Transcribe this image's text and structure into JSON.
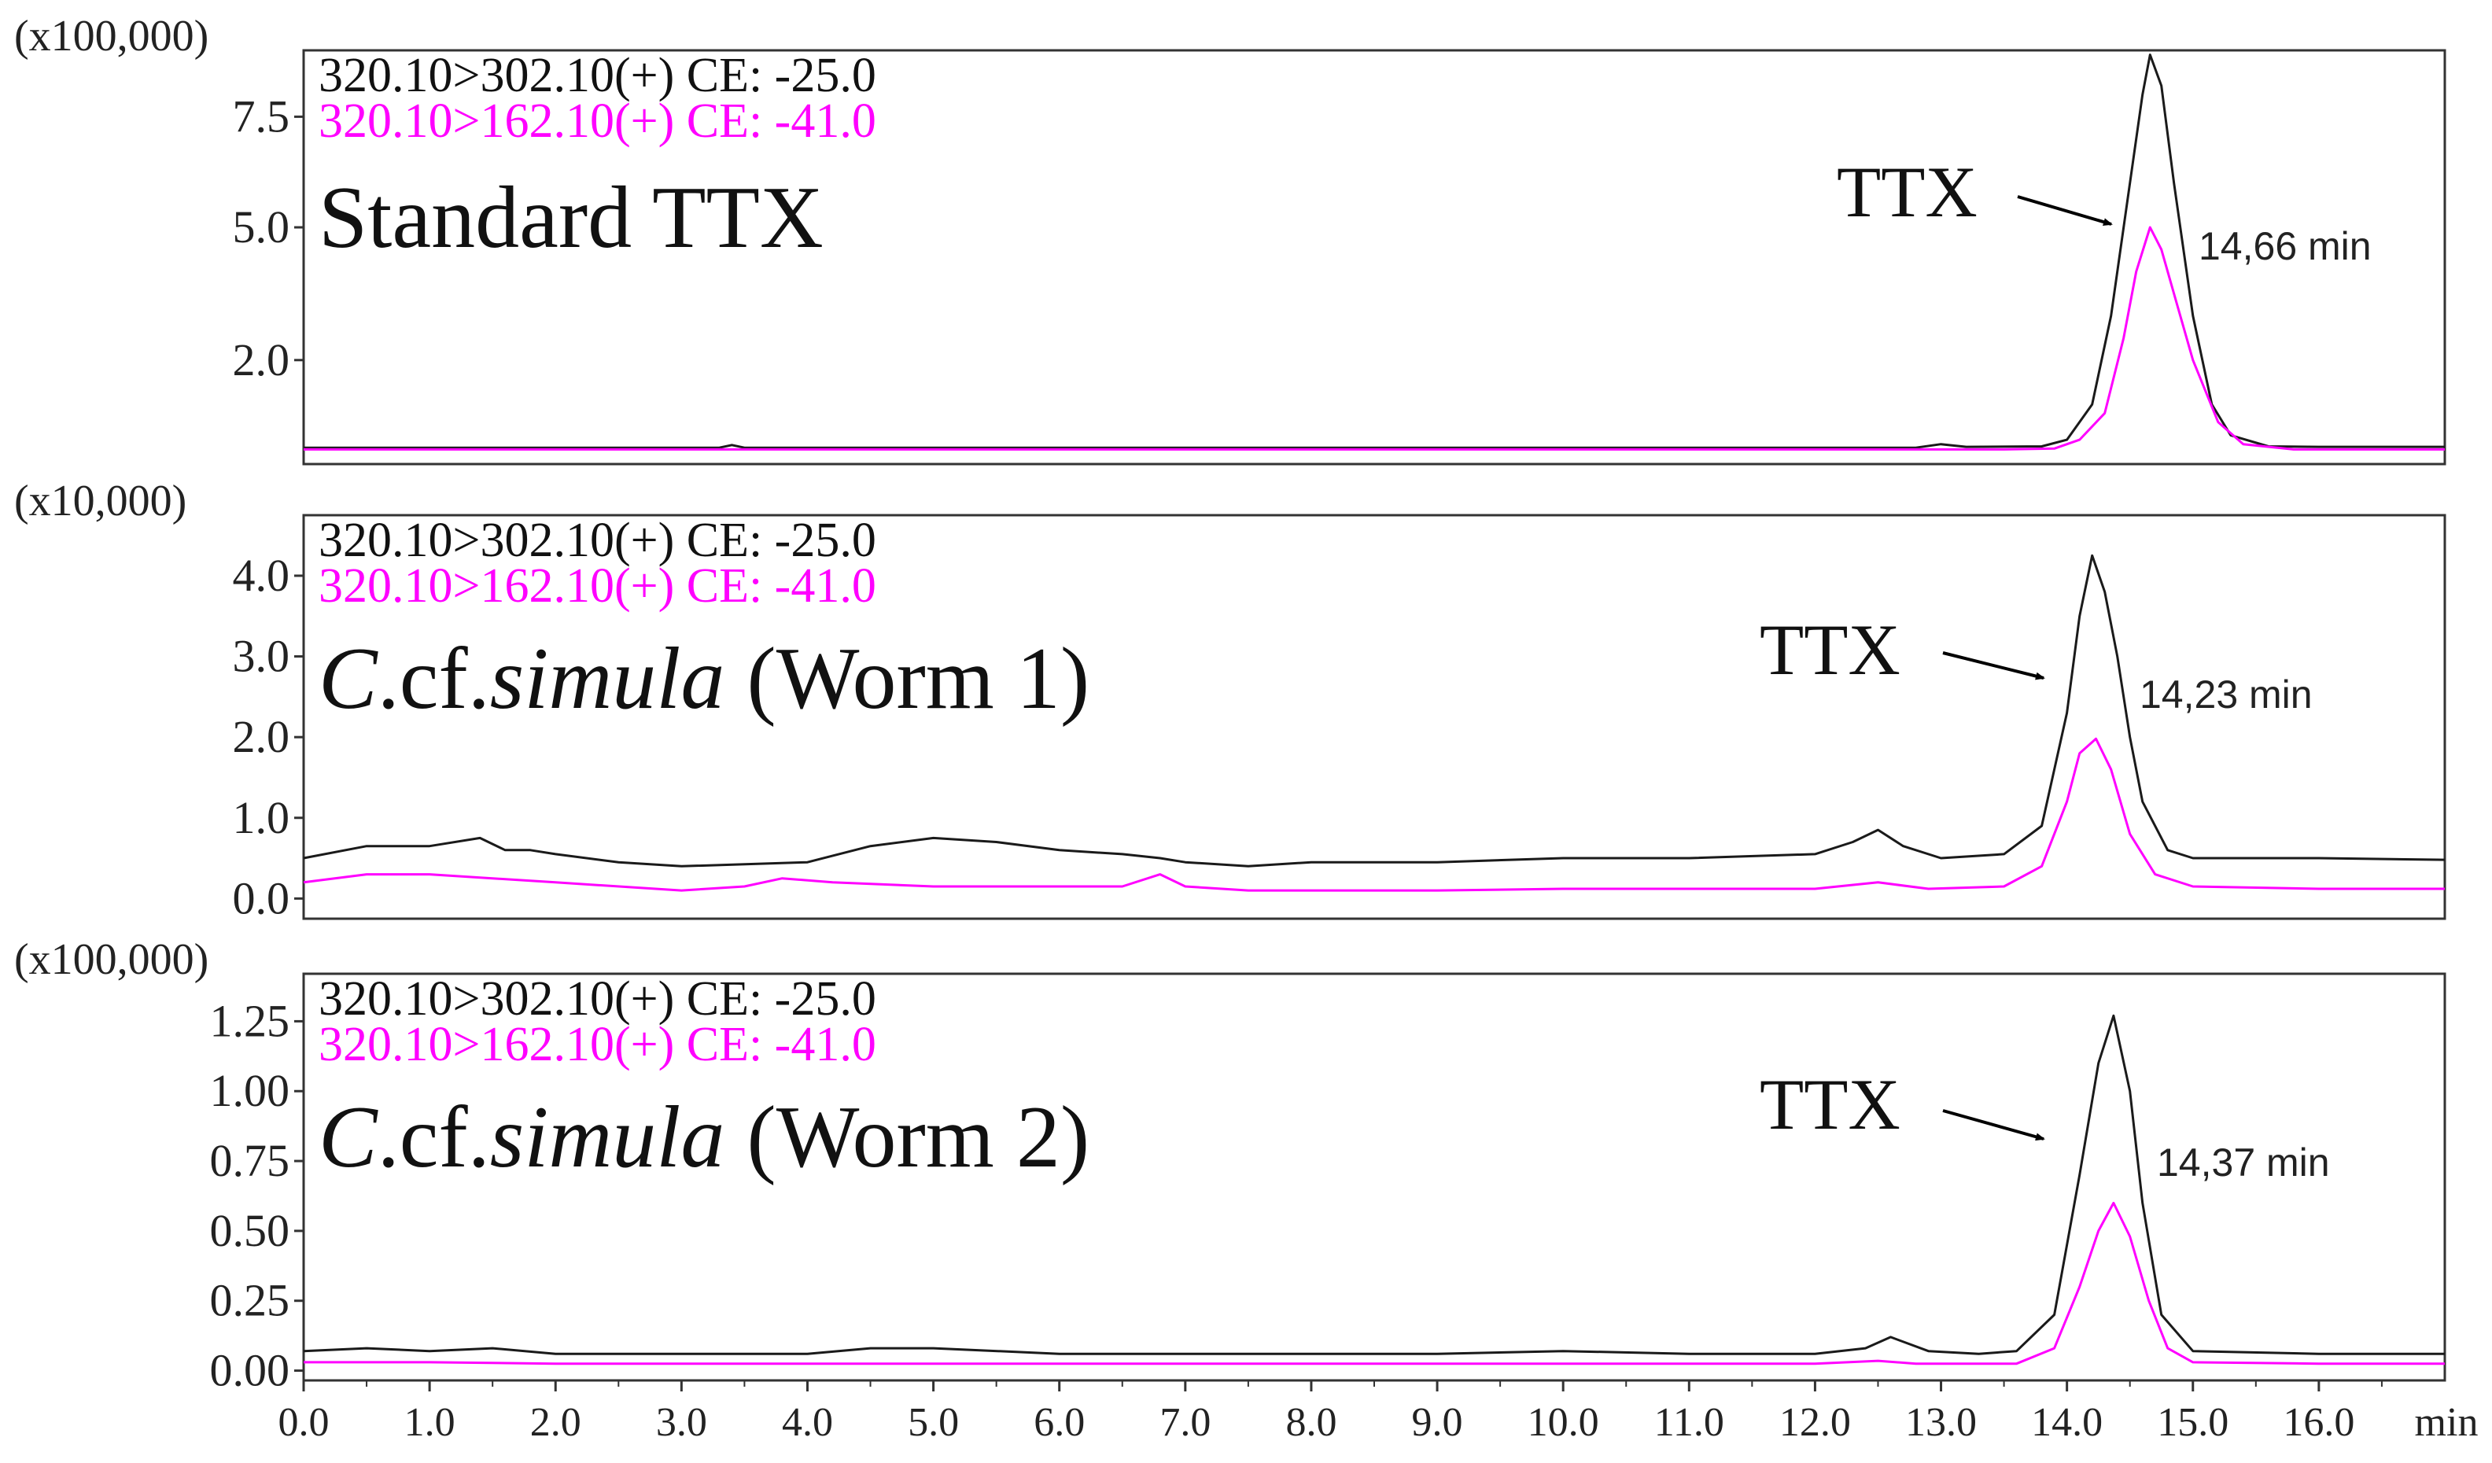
{
  "chart_data": [
    {
      "type": "line",
      "scale_label": "(x100,000)",
      "legend": [
        "320.10>302.10(+) CE: -25.0",
        "320.10>162.10(+) CE: -41.0"
      ],
      "sample_label": "Standard TTX",
      "peak_label": "TTX",
      "retention_label": "14,66 min",
      "y_ticks": [
        "2.0",
        "5.0",
        "7.5"
      ],
      "y_tick_values": [
        2.0,
        5.0,
        7.5
      ],
      "ylim": [
        -0.35,
        9.0
      ],
      "xlim": [
        0.0,
        17.0
      ],
      "series": [
        {
          "color": "#1a1a1a",
          "x": [
            0.0,
            2.0,
            3.3,
            3.4,
            3.5,
            5.0,
            8.0,
            10.0,
            12.8,
            13.0,
            13.2,
            13.8,
            14.0,
            14.2,
            14.35,
            14.5,
            14.6,
            14.66,
            14.75,
            14.85,
            15.0,
            15.15,
            15.3,
            15.6,
            16.0,
            17.0
          ],
          "y": [
            0.02,
            0.02,
            0.02,
            0.08,
            0.02,
            0.02,
            0.02,
            0.02,
            0.02,
            0.1,
            0.04,
            0.05,
            0.2,
            1.0,
            3.0,
            6.0,
            8.0,
            8.9,
            8.2,
            6.0,
            3.0,
            1.0,
            0.3,
            0.05,
            0.04,
            0.04
          ]
        },
        {
          "color": "#ff00ff",
          "x": [
            0.0,
            3.0,
            5.0,
            10.0,
            13.5,
            13.9,
            14.1,
            14.3,
            14.45,
            14.55,
            14.66,
            14.75,
            14.85,
            15.0,
            15.2,
            15.4,
            15.8,
            17.0
          ],
          "y": [
            -0.02,
            -0.02,
            -0.02,
            -0.02,
            -0.02,
            0.0,
            0.2,
            0.8,
            2.5,
            4.0,
            5.0,
            4.5,
            3.5,
            2.0,
            0.6,
            0.1,
            -0.02,
            -0.02
          ]
        }
      ]
    },
    {
      "type": "line",
      "scale_label": "(x10,000)",
      "legend": [
        "320.10>302.10(+) CE: -25.0",
        "320.10>162.10(+) CE: -41.0"
      ],
      "sample_label_italic": "C",
      "sample_label_mid": ".cf.",
      "sample_label_italic2": "simula",
      "sample_label_rest": " (Worm 1)",
      "peak_label": "TTX",
      "retention_label": "14,23 min",
      "y_ticks": [
        "0.0",
        "1.0",
        "2.0",
        "3.0",
        "4.0"
      ],
      "y_tick_values": [
        0.0,
        1.0,
        2.0,
        3.0,
        4.0
      ],
      "ylim": [
        -0.25,
        4.75
      ],
      "xlim": [
        0.0,
        17.0
      ],
      "series": [
        {
          "color": "#1a1a1a",
          "x": [
            0.0,
            0.5,
            1.0,
            1.4,
            1.6,
            1.8,
            2.0,
            2.5,
            3.0,
            4.0,
            4.5,
            5.0,
            5.5,
            6.0,
            6.5,
            6.8,
            7.0,
            7.5,
            8.0,
            9.0,
            10.0,
            11.0,
            12.0,
            12.3,
            12.5,
            12.7,
            13.0,
            13.5,
            13.8,
            14.0,
            14.1,
            14.2,
            14.3,
            14.4,
            14.5,
            14.6,
            14.8,
            15.0,
            16.0,
            17.0
          ],
          "y": [
            0.5,
            0.65,
            0.65,
            0.75,
            0.6,
            0.6,
            0.55,
            0.45,
            0.4,
            0.45,
            0.65,
            0.75,
            0.7,
            0.6,
            0.55,
            0.5,
            0.45,
            0.4,
            0.45,
            0.45,
            0.5,
            0.5,
            0.55,
            0.7,
            0.85,
            0.65,
            0.5,
            0.55,
            0.9,
            2.3,
            3.5,
            4.25,
            3.8,
            3.0,
            2.0,
            1.2,
            0.6,
            0.5,
            0.5,
            0.48
          ]
        },
        {
          "color": "#ff00ff",
          "x": [
            0.0,
            0.5,
            1.0,
            2.0,
            3.0,
            3.5,
            3.8,
            4.2,
            5.0,
            6.0,
            6.5,
            6.8,
            7.0,
            7.5,
            8.0,
            9.0,
            10.0,
            11.0,
            12.0,
            12.5,
            12.9,
            13.5,
            13.8,
            14.0,
            14.1,
            14.23,
            14.35,
            14.5,
            14.7,
            15.0,
            16.0,
            17.0
          ],
          "y": [
            0.2,
            0.3,
            0.3,
            0.2,
            0.1,
            0.15,
            0.25,
            0.2,
            0.15,
            0.15,
            0.15,
            0.3,
            0.15,
            0.1,
            0.1,
            0.1,
            0.12,
            0.12,
            0.12,
            0.2,
            0.12,
            0.15,
            0.4,
            1.2,
            1.8,
            1.98,
            1.6,
            0.8,
            0.3,
            0.15,
            0.12,
            0.12
          ]
        }
      ]
    },
    {
      "type": "line",
      "scale_label": "(x100,000)",
      "legend": [
        "320.10>302.10(+) CE: -25.0",
        "320.10>162.10(+) CE: -41.0"
      ],
      "sample_label_italic": "C",
      "sample_label_mid": ".cf.",
      "sample_label_italic2": "simula",
      "sample_label_rest": " (Worm 2)",
      "peak_label": "TTX",
      "retention_label": "14,37 min",
      "y_ticks": [
        "0.00",
        "0.25",
        "0.50",
        "0.75",
        "1.00",
        "1.25"
      ],
      "y_tick_values": [
        0.0,
        0.25,
        0.5,
        0.75,
        1.0,
        1.25
      ],
      "ylim": [
        -0.035,
        1.42
      ],
      "xlim": [
        0.0,
        17.0
      ],
      "series": [
        {
          "color": "#1a1a1a",
          "x": [
            0.0,
            0.5,
            1.0,
            1.5,
            2.0,
            3.0,
            4.0,
            4.5,
            5.0,
            6.0,
            7.0,
            9.0,
            10.0,
            11.0,
            12.0,
            12.4,
            12.6,
            12.9,
            13.3,
            13.6,
            13.9,
            14.1,
            14.25,
            14.37,
            14.5,
            14.6,
            14.75,
            15.0,
            16.0,
            17.0
          ],
          "y": [
            0.07,
            0.08,
            0.07,
            0.08,
            0.06,
            0.06,
            0.06,
            0.08,
            0.08,
            0.06,
            0.06,
            0.06,
            0.07,
            0.06,
            0.06,
            0.08,
            0.12,
            0.07,
            0.06,
            0.07,
            0.2,
            0.7,
            1.1,
            1.27,
            1.0,
            0.6,
            0.2,
            0.07,
            0.06,
            0.06
          ]
        },
        {
          "color": "#ff00ff",
          "x": [
            0.0,
            1.0,
            2.0,
            3.0,
            4.0,
            5.0,
            8.0,
            10.0,
            12.0,
            12.5,
            12.8,
            13.6,
            13.9,
            14.1,
            14.25,
            14.37,
            14.5,
            14.65,
            14.8,
            15.0,
            16.0,
            17.0
          ],
          "y": [
            0.03,
            0.03,
            0.025,
            0.025,
            0.025,
            0.025,
            0.025,
            0.025,
            0.025,
            0.035,
            0.025,
            0.025,
            0.08,
            0.3,
            0.5,
            0.6,
            0.48,
            0.25,
            0.08,
            0.03,
            0.025,
            0.025
          ]
        }
      ]
    }
  ],
  "x_axis": {
    "ticks": [
      "0.0",
      "1.0",
      "2.0",
      "3.0",
      "4.0",
      "5.0",
      "6.0",
      "7.0",
      "8.0",
      "9.0",
      "10.0",
      "11.0",
      "12.0",
      "13.0",
      "14.0",
      "15.0",
      "16.0"
    ],
    "tick_values": [
      0,
      1,
      2,
      3,
      4,
      5,
      6,
      7,
      8,
      9,
      10,
      11,
      12,
      13,
      14,
      15,
      16
    ],
    "unit": "min",
    "xlim": [
      0.0,
      17.0
    ]
  }
}
